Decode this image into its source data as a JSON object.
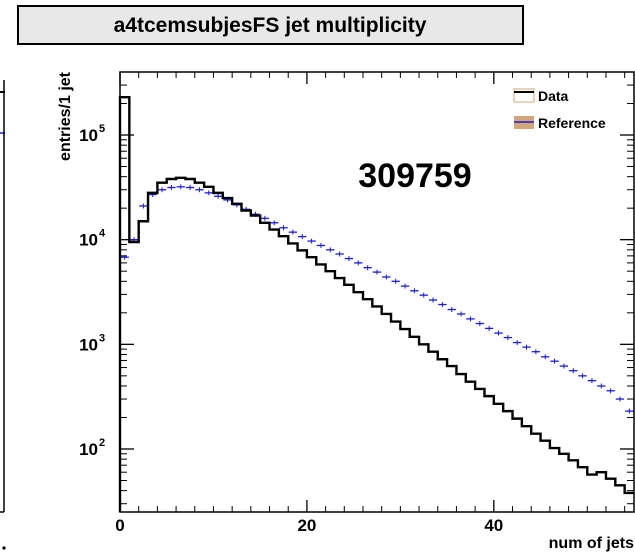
{
  "title": "a4tcemsubjesFS jet multiplicity",
  "run_label": "309759",
  "colors": {
    "data": "#000000",
    "reference": "#1a1adb",
    "reference_fill": "#d2a679"
  },
  "chart_data": {
    "type": "line",
    "title": "a4tcemsubjesFS jet multiplicity",
    "xlabel": "num of jets",
    "ylabel": "entries/1 jet",
    "xlim": [
      0,
      55
    ],
    "ylim": [
      25,
      400000
    ],
    "yscale": "log",
    "x_ticks": [
      0,
      20,
      40
    ],
    "y_ticks": [
      100,
      1000,
      10000,
      100000
    ],
    "y_tick_labels": [
      {
        "base": "10",
        "exp": "2"
      },
      {
        "base": "10",
        "exp": "3"
      },
      {
        "base": "10",
        "exp": "4"
      },
      {
        "base": "10",
        "exp": "5"
      }
    ],
    "legend": {
      "position": "top-right",
      "entries": [
        "Data",
        "Reference"
      ]
    },
    "series": [
      {
        "name": "Data",
        "style": "histogram",
        "x": [
          0,
          1,
          2,
          3,
          4,
          5,
          6,
          7,
          8,
          9,
          10,
          11,
          12,
          13,
          14,
          15,
          16,
          17,
          18,
          19,
          20,
          21,
          22,
          23,
          24,
          25,
          26,
          27,
          28,
          29,
          30,
          31,
          32,
          33,
          34,
          35,
          36,
          37,
          38,
          39,
          40,
          41,
          42,
          43,
          44,
          45,
          46,
          47,
          48,
          49,
          50,
          51,
          52,
          53,
          54
        ],
        "values": [
          230000,
          9500,
          15000,
          28000,
          35000,
          38000,
          39000,
          38000,
          35000,
          32000,
          28000,
          25000,
          22000,
          19000,
          17000,
          14500,
          12500,
          10800,
          9200,
          7900,
          6800,
          5800,
          5000,
          4300,
          3700,
          3150,
          2700,
          2300,
          1950,
          1650,
          1400,
          1180,
          1000,
          850,
          720,
          620,
          520,
          440,
          375,
          320,
          270,
          230,
          195,
          165,
          140,
          120,
          102,
          90,
          78,
          67,
          57,
          60,
          52,
          45,
          38
        ]
      },
      {
        "name": "Reference",
        "style": "errorbar",
        "x": [
          0,
          1,
          2,
          3,
          4,
          5,
          6,
          7,
          8,
          9,
          10,
          11,
          12,
          13,
          14,
          15,
          16,
          17,
          18,
          19,
          20,
          21,
          22,
          23,
          24,
          25,
          26,
          27,
          28,
          29,
          30,
          31,
          32,
          33,
          34,
          35,
          36,
          37,
          38,
          39,
          40,
          41,
          42,
          43,
          44,
          45,
          46,
          47,
          48,
          49,
          50,
          51,
          52,
          53,
          54
        ],
        "values": [
          6800,
          10000,
          21000,
          27000,
          30000,
          31500,
          32000,
          31500,
          30000,
          28000,
          26000,
          24000,
          21500,
          19500,
          17500,
          16000,
          14500,
          13000,
          11800,
          10700,
          9700,
          8800,
          8000,
          7300,
          6600,
          6000,
          5400,
          4900,
          4400,
          4000,
          3600,
          3250,
          2950,
          2650,
          2400,
          2150,
          1950,
          1750,
          1580,
          1420,
          1280,
          1160,
          1040,
          940,
          850,
          760,
          690,
          620,
          560,
          500,
          450,
          400,
          360,
          300,
          230
        ]
      }
    ]
  }
}
